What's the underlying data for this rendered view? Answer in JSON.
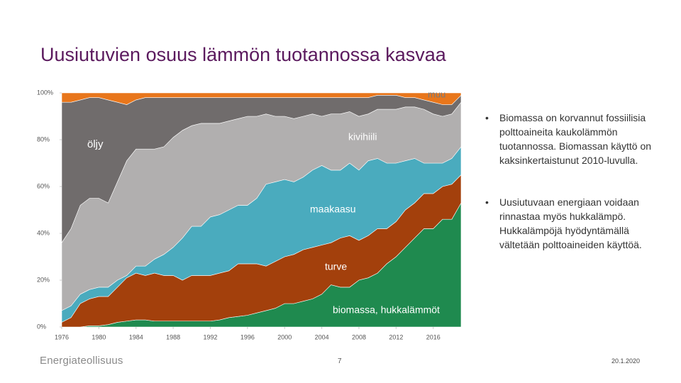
{
  "title": "Uusiutuvien osuus lämmön tuotannossa kasvaa",
  "bullets": [
    "Biomassa on korvannut fossiilisia polttoaineita kaukolämmön tuotannossa. Biomassan käyttö on kaksinkertaistunut 2010-luvulla.",
    "Uusiutuvaan energiaan voidaan rinnastaa myös hukkalämpö. Hukkalämpöjä hyödyntämällä vältetään polttoaineiden käyttöä."
  ],
  "footer": {
    "logo": "Energiateollisuus",
    "page": "7",
    "date": "20.1.2020"
  },
  "chart_data": {
    "type": "area",
    "stacked": true,
    "x": [
      1976,
      1977,
      1978,
      1979,
      1980,
      1981,
      1982,
      1983,
      1984,
      1985,
      1986,
      1987,
      1988,
      1989,
      1990,
      1991,
      1992,
      1993,
      1994,
      1995,
      1996,
      1997,
      1998,
      1999,
      2000,
      2001,
      2002,
      2003,
      2004,
      2005,
      2006,
      2007,
      2008,
      2009,
      2010,
      2011,
      2012,
      2013,
      2014,
      2015,
      2016,
      2017,
      2018,
      2019
    ],
    "xlim": [
      1976,
      2019
    ],
    "xticks": [
      1976,
      1980,
      1984,
      1988,
      1992,
      1996,
      2000,
      2004,
      2008,
      2012,
      2016
    ],
    "ylim": [
      0,
      100
    ],
    "yticks": [
      {
        "value": 0,
        "label": "0%"
      },
      {
        "value": 20,
        "label": "20%"
      },
      {
        "value": 40,
        "label": "40%"
      },
      {
        "value": 60,
        "label": "60%"
      },
      {
        "value": 80,
        "label": "80%"
      },
      {
        "value": 100,
        "label": "100%"
      }
    ],
    "series": [
      {
        "name": "biomassa, hukkalämmöt",
        "color": "#1f8a4f",
        "values": [
          0,
          0,
          0,
          0.5,
          0.5,
          1,
          2,
          2.5,
          3,
          3,
          2.5,
          2.5,
          2.5,
          2.5,
          2.5,
          2.5,
          2.5,
          3,
          4,
          4.5,
          5,
          6,
          7,
          8,
          10,
          10,
          11,
          12,
          14,
          18,
          17,
          17,
          20,
          21,
          23,
          27,
          30,
          34,
          38,
          42,
          42,
          46,
          46,
          53
        ]
      },
      {
        "name": "turve",
        "color": "#a3400c",
        "values": [
          2,
          4,
          10,
          11.5,
          12.5,
          12,
          15,
          18.5,
          20,
          19,
          20.5,
          19.5,
          19.5,
          17.5,
          19.5,
          19.5,
          19.5,
          20,
          20,
          22.5,
          22,
          21,
          19,
          20,
          20,
          21,
          22,
          22,
          21,
          18,
          21,
          22,
          17,
          18,
          19,
          15,
          15,
          16,
          15,
          15,
          15,
          14,
          15,
          12
        ]
      },
      {
        "name": "maakaasu",
        "color": "#4aabbe",
        "values": [
          5,
          5,
          4,
          4,
          4,
          4,
          3,
          1,
          3,
          4,
          6,
          9,
          12,
          18,
          21,
          21,
          25,
          25,
          26,
          25,
          25,
          28,
          35,
          34,
          33,
          31,
          31,
          33,
          34,
          31,
          29,
          31,
          30,
          32,
          30,
          28,
          25,
          21,
          19,
          13,
          13,
          10,
          11,
          12
        ]
      },
      {
        "name": "kivihiili",
        "color": "#b1afaf",
        "values": [
          29,
          33,
          38,
          39,
          38,
          36,
          42,
          49,
          50,
          50,
          47,
          46,
          47,
          46,
          43,
          44,
          40,
          39,
          38,
          37,
          38,
          35,
          30,
          28,
          27,
          27,
          26,
          24,
          21,
          24,
          24,
          22,
          23,
          20,
          21,
          23,
          23,
          23,
          22,
          23,
          21,
          20,
          19,
          19
        ]
      },
      {
        "name": "öljy",
        "color": "#706c6c",
        "values": [
          60,
          54,
          45,
          43,
          43,
          44,
          34,
          24,
          21,
          22,
          22,
          21,
          17,
          14,
          12,
          11,
          11,
          11,
          10,
          9,
          8,
          8,
          7,
          8,
          8,
          9,
          8,
          7,
          8,
          7,
          7,
          6,
          8,
          7,
          6,
          6,
          6,
          4,
          4,
          4,
          5,
          5,
          4,
          3
        ]
      },
      {
        "name": "muu",
        "color": "#e8761b",
        "values": [
          4,
          4,
          3,
          2,
          2,
          3,
          4,
          5,
          3,
          2,
          2,
          2,
          2,
          2,
          2,
          2,
          2,
          2,
          2,
          2,
          2,
          2,
          2,
          2,
          2,
          2,
          2,
          2,
          2,
          2,
          2,
          2,
          2,
          2,
          1,
          1,
          1,
          2,
          2,
          3,
          4,
          5,
          5,
          1
        ]
      }
    ]
  }
}
